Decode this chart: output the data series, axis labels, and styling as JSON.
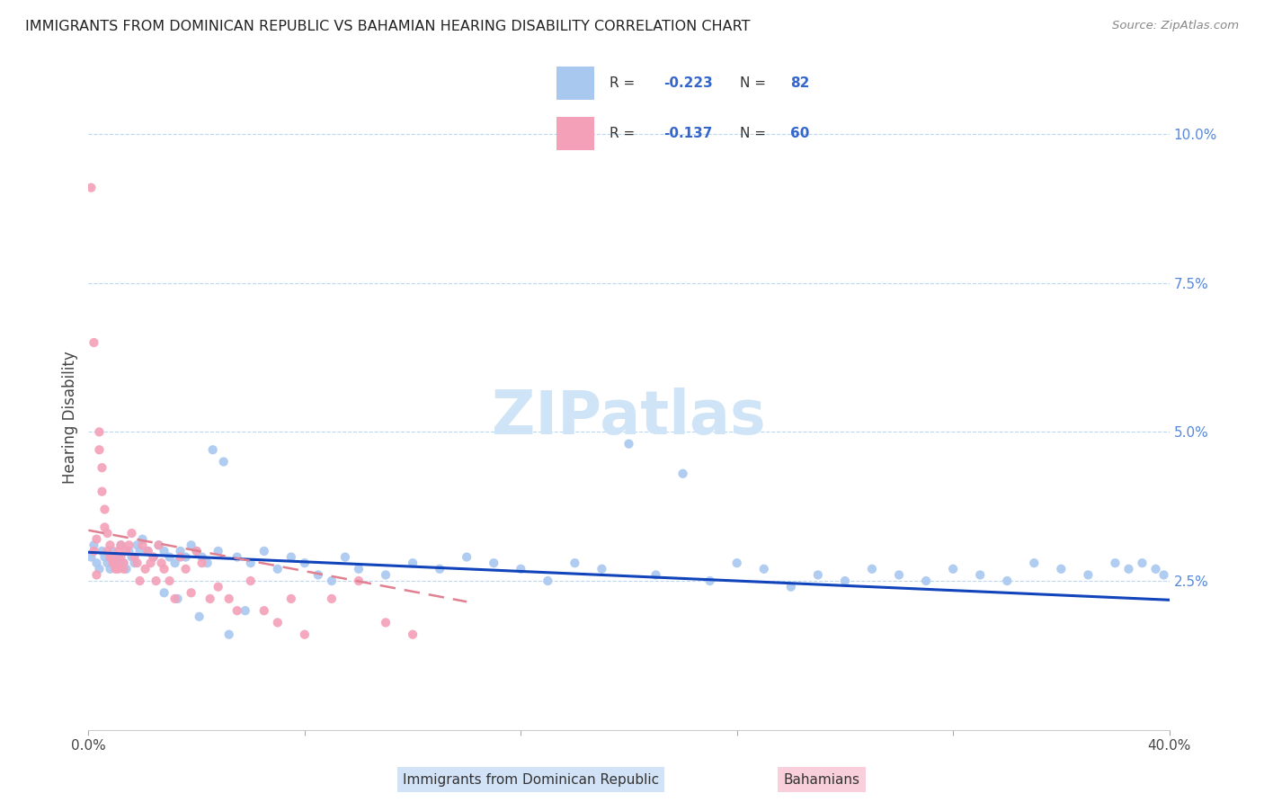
{
  "title": "IMMIGRANTS FROM DOMINICAN REPUBLIC VS BAHAMIAN HEARING DISABILITY CORRELATION CHART",
  "source": "Source: ZipAtlas.com",
  "ylabel": "Hearing Disability",
  "xlim": [
    0.0,
    0.4
  ],
  "ylim": [
    0.0,
    0.105
  ],
  "right_yticks": [
    0.025,
    0.05,
    0.075,
    0.1
  ],
  "right_yticklabels": [
    "2.5%",
    "5.0%",
    "7.5%",
    "10.0%"
  ],
  "blue_R": -0.223,
  "blue_N": 82,
  "pink_R": -0.137,
  "pink_N": 60,
  "blue_color": "#a8c8f0",
  "pink_color": "#f4a0b8",
  "blue_line_color": "#1144bb",
  "pink_line_color": "#e08090",
  "watermark": "ZIPatlas",
  "watermark_color": "#d0e4f8",
  "legend_blue_label": "Immigrants from Dominican Republic",
  "legend_pink_label": "Bahamians",
  "blue_scatter_x": [
    0.001,
    0.002,
    0.003,
    0.004,
    0.005,
    0.006,
    0.007,
    0.008,
    0.009,
    0.01,
    0.011,
    0.012,
    0.013,
    0.014,
    0.015,
    0.016,
    0.017,
    0.018,
    0.019,
    0.02,
    0.022,
    0.024,
    0.026,
    0.028,
    0.03,
    0.032,
    0.034,
    0.036,
    0.038,
    0.04,
    0.042,
    0.044,
    0.046,
    0.048,
    0.05,
    0.055,
    0.06,
    0.065,
    0.07,
    0.075,
    0.08,
    0.085,
    0.09,
    0.095,
    0.1,
    0.11,
    0.12,
    0.13,
    0.14,
    0.15,
    0.16,
    0.17,
    0.18,
    0.19,
    0.2,
    0.21,
    0.22,
    0.23,
    0.24,
    0.25,
    0.26,
    0.27,
    0.28,
    0.29,
    0.3,
    0.31,
    0.32,
    0.33,
    0.34,
    0.35,
    0.36,
    0.37,
    0.38,
    0.385,
    0.39,
    0.395,
    0.398,
    0.028,
    0.033,
    0.041,
    0.052,
    0.058
  ],
  "blue_scatter_y": [
    0.029,
    0.031,
    0.028,
    0.027,
    0.03,
    0.029,
    0.028,
    0.027,
    0.03,
    0.028,
    0.029,
    0.031,
    0.028,
    0.027,
    0.03,
    0.029,
    0.028,
    0.031,
    0.03,
    0.032,
    0.03,
    0.029,
    0.031,
    0.03,
    0.029,
    0.028,
    0.03,
    0.029,
    0.031,
    0.03,
    0.029,
    0.028,
    0.047,
    0.03,
    0.045,
    0.029,
    0.028,
    0.03,
    0.027,
    0.029,
    0.028,
    0.026,
    0.025,
    0.029,
    0.027,
    0.026,
    0.028,
    0.027,
    0.029,
    0.028,
    0.027,
    0.025,
    0.028,
    0.027,
    0.048,
    0.026,
    0.043,
    0.025,
    0.028,
    0.027,
    0.024,
    0.026,
    0.025,
    0.027,
    0.026,
    0.025,
    0.027,
    0.026,
    0.025,
    0.028,
    0.027,
    0.026,
    0.028,
    0.027,
    0.028,
    0.027,
    0.026,
    0.023,
    0.022,
    0.019,
    0.016,
    0.02
  ],
  "pink_scatter_x": [
    0.001,
    0.002,
    0.002,
    0.003,
    0.003,
    0.004,
    0.004,
    0.005,
    0.005,
    0.006,
    0.006,
    0.007,
    0.007,
    0.008,
    0.008,
    0.009,
    0.009,
    0.01,
    0.01,
    0.011,
    0.011,
    0.012,
    0.012,
    0.013,
    0.013,
    0.014,
    0.015,
    0.016,
    0.017,
    0.018,
    0.019,
    0.02,
    0.021,
    0.022,
    0.023,
    0.024,
    0.025,
    0.026,
    0.027,
    0.028,
    0.03,
    0.032,
    0.034,
    0.036,
    0.038,
    0.04,
    0.042,
    0.045,
    0.048,
    0.052,
    0.055,
    0.06,
    0.065,
    0.07,
    0.075,
    0.08,
    0.09,
    0.1,
    0.11,
    0.12
  ],
  "pink_scatter_y": [
    0.091,
    0.065,
    0.03,
    0.032,
    0.026,
    0.05,
    0.047,
    0.044,
    0.04,
    0.037,
    0.034,
    0.033,
    0.03,
    0.031,
    0.029,
    0.029,
    0.028,
    0.028,
    0.027,
    0.03,
    0.027,
    0.031,
    0.029,
    0.028,
    0.027,
    0.03,
    0.031,
    0.033,
    0.029,
    0.028,
    0.025,
    0.031,
    0.027,
    0.03,
    0.028,
    0.029,
    0.025,
    0.031,
    0.028,
    0.027,
    0.025,
    0.022,
    0.029,
    0.027,
    0.023,
    0.03,
    0.028,
    0.022,
    0.024,
    0.022,
    0.02,
    0.025,
    0.02,
    0.018,
    0.022,
    0.016,
    0.022,
    0.025,
    0.018,
    0.016
  ],
  "blue_trend_x": [
    0.0,
    0.4
  ],
  "blue_trend_y": [
    0.0298,
    0.0218
  ],
  "pink_trend_x": [
    0.0,
    0.14
  ],
  "pink_trend_y": [
    0.0335,
    0.0215
  ]
}
